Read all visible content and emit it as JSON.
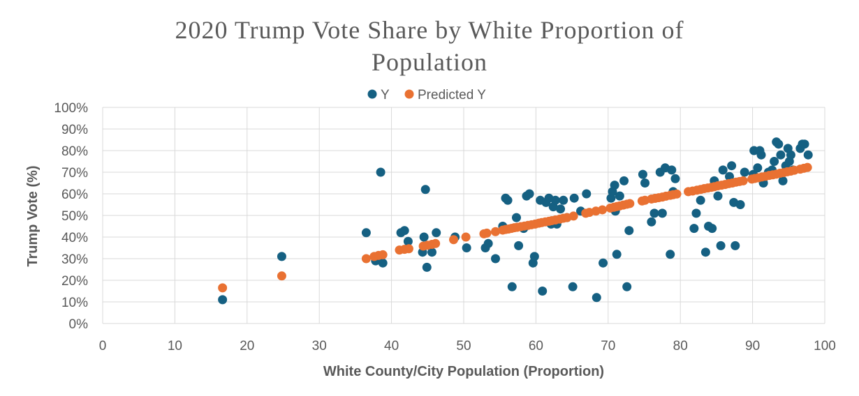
{
  "chart_data": {
    "type": "scatter",
    "title_lines": [
      "2020 Trump Vote Share by White Proportion of",
      "Population"
    ],
    "xlabel": "White County/City Population (Proportion)",
    "ylabel": "Trump Vote (%)",
    "xlim": [
      0,
      100
    ],
    "ylim": [
      0,
      100
    ],
    "x_ticks": [
      "0",
      "10",
      "20",
      "30",
      "40",
      "50",
      "60",
      "70",
      "80",
      "90",
      "100"
    ],
    "y_ticks": [
      "0%",
      "10%",
      "20%",
      "30%",
      "40%",
      "50%",
      "60%",
      "70%",
      "80%",
      "90%",
      "100%"
    ],
    "legend_position": "top",
    "grid": true,
    "series": [
      {
        "name": "Y",
        "color": "#156082",
        "points": [
          [
            16.6,
            11
          ],
          [
            24.8,
            31
          ],
          [
            36.5,
            42
          ],
          [
            37.8,
            29
          ],
          [
            38.5,
            70
          ],
          [
            38.8,
            28
          ],
          [
            41.3,
            42
          ],
          [
            41.8,
            43
          ],
          [
            42.3,
            38
          ],
          [
            44.3,
            33
          ],
          [
            44.5,
            40
          ],
          [
            44.7,
            62
          ],
          [
            44.9,
            26
          ],
          [
            45.6,
            33
          ],
          [
            46.2,
            42
          ],
          [
            48.8,
            40
          ],
          [
            50.4,
            35
          ],
          [
            53.0,
            35
          ],
          [
            53.4,
            37
          ],
          [
            54.4,
            30
          ],
          [
            55.4,
            45
          ],
          [
            55.8,
            58
          ],
          [
            56.1,
            57
          ],
          [
            56.7,
            17
          ],
          [
            57.3,
            49
          ],
          [
            57.6,
            36
          ],
          [
            58.3,
            44
          ],
          [
            58.7,
            59
          ],
          [
            59.1,
            60
          ],
          [
            59.6,
            28
          ],
          [
            59.8,
            31
          ],
          [
            60.6,
            57
          ],
          [
            60.9,
            15
          ],
          [
            61.4,
            56
          ],
          [
            61.8,
            58
          ],
          [
            62.1,
            46
          ],
          [
            62.4,
            54
          ],
          [
            62.7,
            57
          ],
          [
            62.9,
            46
          ],
          [
            63.4,
            53
          ],
          [
            63.8,
            57
          ],
          [
            64.3,
            49
          ],
          [
            65.1,
            17
          ],
          [
            65.3,
            58
          ],
          [
            66.2,
            52
          ],
          [
            67.0,
            60
          ],
          [
            68.4,
            12
          ],
          [
            69.3,
            28
          ],
          [
            70.4,
            58
          ],
          [
            70.6,
            61
          ],
          [
            70.9,
            64
          ],
          [
            71.0,
            52
          ],
          [
            71.2,
            32
          ],
          [
            71.6,
            59
          ],
          [
            72.2,
            66
          ],
          [
            72.6,
            17
          ],
          [
            72.9,
            43
          ],
          [
            74.8,
            69
          ],
          [
            75.1,
            65
          ],
          [
            76.0,
            47
          ],
          [
            76.4,
            51
          ],
          [
            77.2,
            70
          ],
          [
            77.5,
            51
          ],
          [
            77.9,
            72
          ],
          [
            78.6,
            32
          ],
          [
            78.8,
            71
          ],
          [
            79.0,
            61
          ],
          [
            79.3,
            67
          ],
          [
            81.9,
            44
          ],
          [
            82.2,
            51
          ],
          [
            82.8,
            57
          ],
          [
            83.5,
            33
          ],
          [
            83.9,
            45
          ],
          [
            84.4,
            44
          ],
          [
            84.7,
            66
          ],
          [
            85.2,
            59
          ],
          [
            85.6,
            36
          ],
          [
            85.9,
            71
          ],
          [
            86.8,
            68
          ],
          [
            87.1,
            73
          ],
          [
            87.4,
            56
          ],
          [
            87.6,
            36
          ],
          [
            88.3,
            55
          ],
          [
            88.9,
            70
          ],
          [
            90.1,
            69
          ],
          [
            90.2,
            80
          ],
          [
            90.7,
            72
          ],
          [
            91.0,
            80
          ],
          [
            91.2,
            78
          ],
          [
            91.5,
            65
          ],
          [
            92.2,
            70
          ],
          [
            92.7,
            71
          ],
          [
            93.0,
            75
          ],
          [
            93.3,
            84
          ],
          [
            93.6,
            83
          ],
          [
            93.9,
            78
          ],
          [
            94.2,
            66
          ],
          [
            94.6,
            73
          ],
          [
            94.9,
            81
          ],
          [
            95.1,
            75
          ],
          [
            95.3,
            78
          ],
          [
            95.6,
            71
          ],
          [
            96.6,
            81
          ],
          [
            96.9,
            83
          ],
          [
            97.2,
            83
          ],
          [
            97.7,
            78
          ]
        ]
      },
      {
        "name": "Predicted Y",
        "color": "#E97132",
        "points": [
          [
            16.6,
            16.5
          ],
          [
            24.8,
            22
          ],
          [
            36.5,
            30
          ],
          [
            37.6,
            31
          ],
          [
            38.2,
            31.5
          ],
          [
            38.8,
            31.8
          ],
          [
            41.1,
            34
          ],
          [
            41.8,
            34.3
          ],
          [
            42.4,
            34.6
          ],
          [
            44.4,
            35.8
          ],
          [
            45.0,
            36.2
          ],
          [
            45.6,
            36.6
          ],
          [
            46.1,
            37
          ],
          [
            48.6,
            38.8
          ],
          [
            50.3,
            40
          ],
          [
            52.8,
            41.5
          ],
          [
            53.2,
            41.8
          ],
          [
            54.4,
            42.5
          ],
          [
            55.4,
            43.2
          ],
          [
            55.8,
            43.5
          ],
          [
            56.2,
            43.7
          ],
          [
            56.6,
            44
          ],
          [
            57.0,
            44.3
          ],
          [
            57.4,
            44.5
          ],
          [
            57.9,
            44.8
          ],
          [
            58.4,
            45.1
          ],
          [
            58.9,
            45.4
          ],
          [
            59.4,
            45.7
          ],
          [
            59.9,
            46
          ],
          [
            60.4,
            46.4
          ],
          [
            60.8,
            46.7
          ],
          [
            61.3,
            47
          ],
          [
            61.8,
            47.3
          ],
          [
            62.2,
            47.6
          ],
          [
            62.7,
            47.9
          ],
          [
            63.3,
            48.3
          ],
          [
            63.8,
            48.7
          ],
          [
            64.3,
            49
          ],
          [
            65.2,
            49.7
          ],
          [
            66.9,
            51
          ],
          [
            67.4,
            51.4
          ],
          [
            68.3,
            52
          ],
          [
            69.2,
            52.6
          ],
          [
            70.3,
            53.4
          ],
          [
            70.8,
            53.8
          ],
          [
            71.2,
            54.1
          ],
          [
            71.6,
            54.4
          ],
          [
            72.1,
            54.8
          ],
          [
            72.6,
            55.2
          ],
          [
            73.0,
            55.5
          ],
          [
            74.7,
            56.7
          ],
          [
            75.1,
            57
          ],
          [
            76.0,
            57.6
          ],
          [
            76.5,
            57.9
          ],
          [
            77.0,
            58.2
          ],
          [
            77.5,
            58.5
          ],
          [
            78.0,
            58.9
          ],
          [
            78.6,
            59.3
          ],
          [
            79.0,
            59.6
          ],
          [
            79.5,
            59.9
          ],
          [
            81.1,
            61
          ],
          [
            81.7,
            61.3
          ],
          [
            82.3,
            61.7
          ],
          [
            82.8,
            62
          ],
          [
            83.3,
            62.4
          ],
          [
            83.8,
            62.7
          ],
          [
            84.3,
            63
          ],
          [
            84.7,
            63.3
          ],
          [
            85.2,
            63.7
          ],
          [
            85.7,
            64
          ],
          [
            86.2,
            64.3
          ],
          [
            86.7,
            64.7
          ],
          [
            87.2,
            65
          ],
          [
            87.7,
            65.4
          ],
          [
            88.2,
            65.7
          ],
          [
            88.7,
            66
          ],
          [
            89.9,
            66.8
          ],
          [
            90.3,
            67.1
          ],
          [
            90.8,
            67.4
          ],
          [
            91.3,
            67.8
          ],
          [
            91.8,
            68.1
          ],
          [
            92.3,
            68.5
          ],
          [
            92.8,
            68.8
          ],
          [
            93.3,
            69.1
          ],
          [
            93.8,
            69.5
          ],
          [
            94.3,
            69.8
          ],
          [
            94.8,
            70.2
          ],
          [
            95.3,
            70.5
          ],
          [
            95.8,
            70.9
          ],
          [
            96.6,
            71.4
          ],
          [
            97.1,
            71.8
          ],
          [
            97.6,
            72.2
          ]
        ]
      }
    ]
  }
}
